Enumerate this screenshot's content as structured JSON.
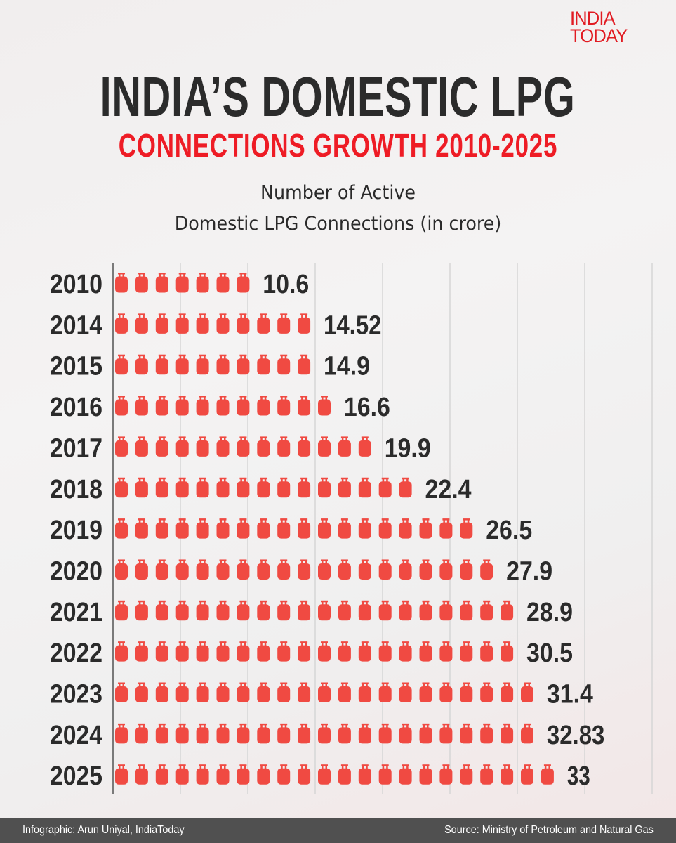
{
  "brand": {
    "logo_line1": "INDIA",
    "logo_line2": "TODAY"
  },
  "header": {
    "title": "INDIA’S DOMESTIC LPG",
    "subtitle": "CONNECTIONS GROWTH 2010-2025"
  },
  "chart_data": {
    "type": "bar",
    "style": "pictogram",
    "icon": "lpg-cylinder-icon",
    "title_line1": "Number of Active",
    "title_line2": "Domestic LPG Connections (in crore)",
    "categories": [
      "2010",
      "2014",
      "2015",
      "2016",
      "2017",
      "2018",
      "2019",
      "2020",
      "2021",
      "2022",
      "2023",
      "2024",
      "2025"
    ],
    "values": [
      10.6,
      14.52,
      14.9,
      16.6,
      19.9,
      22.4,
      26.5,
      27.9,
      28.9,
      30.5,
      31.4,
      32.83,
      33
    ],
    "labels": [
      "10.6",
      "14.52",
      "14.9",
      "16.6",
      "19.9",
      "22.4",
      "26.5",
      "27.9",
      "28.9",
      "30.5",
      "31.4",
      "32.83",
      "33"
    ],
    "icon_counts": [
      7,
      10,
      10,
      11,
      13,
      15,
      18,
      19,
      20,
      20,
      21,
      21,
      22
    ],
    "orientation": "horizontal",
    "grid": true,
    "colors": {
      "icon": "#f04a42",
      "text": "#2b2b2b",
      "accent": "#ee1c25"
    }
  },
  "footer": {
    "credit": "Infographic: Arun Uniyal, IndiaToday",
    "source": "Source: Ministry of Petroleum and Natural Gas"
  }
}
